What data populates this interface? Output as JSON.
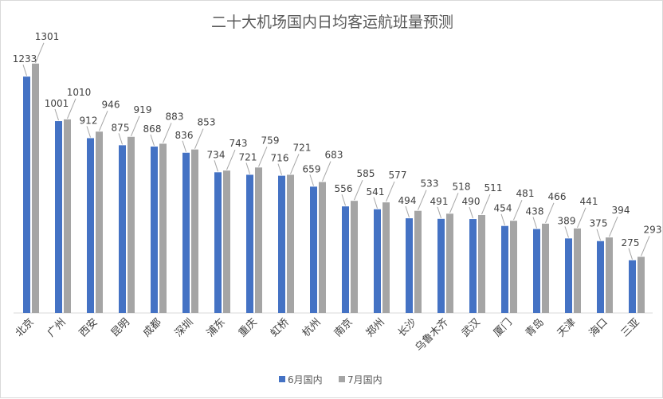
{
  "chart_data": {
    "type": "bar",
    "title": "二十大机场国内日均客运航班量预测",
    "xlabel": "",
    "ylabel": "",
    "ylim": [
      0,
      1400
    ],
    "grid": false,
    "legend_position": "bottom",
    "categories": [
      "北京",
      "广州",
      "西安",
      "昆明",
      "成都",
      "深圳",
      "浦东",
      "重庆",
      "虹桥",
      "杭州",
      "南京",
      "郑州",
      "长沙",
      "乌鲁木齐",
      "武汉",
      "厦门",
      "青岛",
      "天津",
      "海口",
      "三亚"
    ],
    "series": [
      {
        "name": "6月国内",
        "color": "#4472c4",
        "values": [
          1233,
          1001,
          912,
          875,
          868,
          836,
          734,
          721,
          716,
          659,
          556,
          541,
          494,
          491,
          490,
          454,
          438,
          389,
          375,
          275
        ]
      },
      {
        "name": "7月国内",
        "color": "#a5a5a5",
        "values": [
          1301,
          1010,
          946,
          919,
          883,
          853,
          743,
          759,
          721,
          683,
          585,
          577,
          533,
          518,
          511,
          481,
          466,
          441,
          394,
          293
        ]
      }
    ]
  }
}
